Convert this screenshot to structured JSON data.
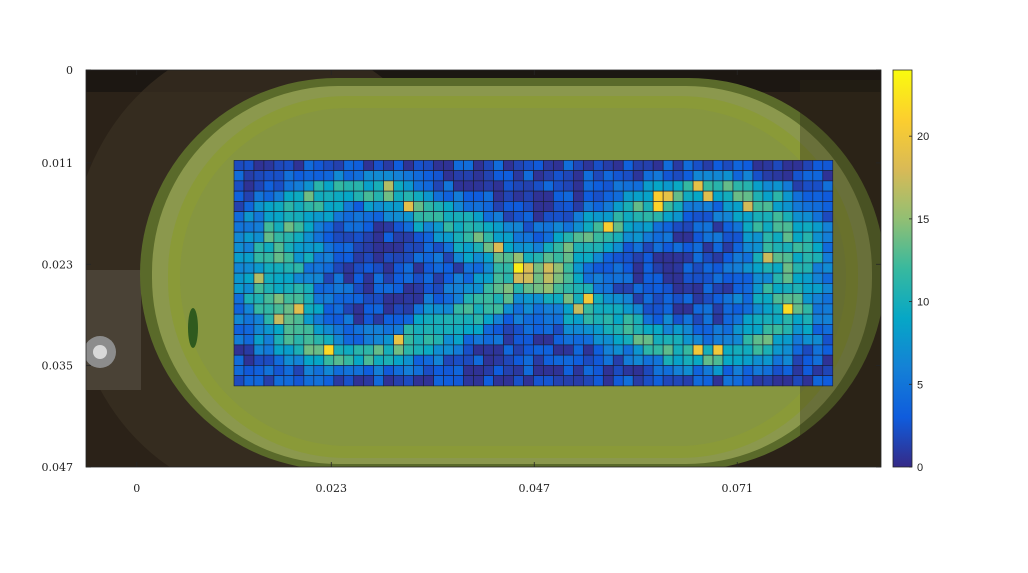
{
  "chart_data": {
    "type": "heatmap",
    "title": "",
    "xlabel": "",
    "ylabel": "",
    "x_ticks": [
      "0",
      "0.023",
      "0.047",
      "0.071"
    ],
    "y_ticks": [
      "0",
      "0.011",
      "0.023",
      "0.035",
      "0.047"
    ],
    "xlim": [
      -0.006,
      0.088
    ],
    "ylim": [
      0,
      0.047
    ],
    "y_reversed": true,
    "colorbar": {
      "range": [
        0,
        24
      ],
      "ticks": [
        "0",
        "5",
        "10",
        "15",
        "20"
      ],
      "colormap": "parula"
    },
    "grid_extent": {
      "x": [
        0.0115,
        0.0823
      ],
      "y": [
        0.0107,
        0.0374
      ]
    },
    "n_cols": 60,
    "n_rows": 22,
    "pattern": "figure-eight",
    "peak_value": 22,
    "background": "photograph of green fluid tank with dark rim"
  },
  "colors": {
    "tank_fill": "#8a9a38",
    "tank_rim": "#3d3a20",
    "backdrop": "#2b2218",
    "grid_line": "#1a1a2e"
  }
}
